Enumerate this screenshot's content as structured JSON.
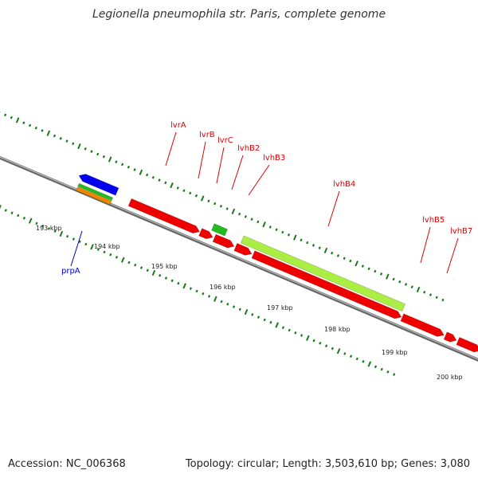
{
  "title": "Legionella pneumophila str. Paris, complete genome",
  "footer": {
    "accession": "Accession: NC_006368",
    "summary": "Topology: circular; Length: 3,503,610 bp; Genes: 3,080"
  },
  "colors": {
    "backbone": "#888888",
    "tick": "#1a7a1a",
    "gene_red": "#ee0000",
    "gene_lime": "#aaee44",
    "gene_green": "#22bb22",
    "gene_blue": "#0000ee",
    "gene_orange": "#ee8800",
    "label_red": "#dd0000",
    "label_blue": "#0000cc"
  },
  "scale_labels": [
    "193 kbp",
    "194 kbp",
    "195 kbp",
    "196 kbp",
    "197 kbp",
    "198 kbp",
    "199 kbp",
    "200 kbp"
  ],
  "gene_labels": [
    {
      "text": "lvrA",
      "color": "label_red"
    },
    {
      "text": "lvrB",
      "color": "label_red"
    },
    {
      "text": "lvrC",
      "color": "label_red"
    },
    {
      "text": "lvhB2",
      "color": "label_red"
    },
    {
      "text": "lvhB3",
      "color": "label_red"
    },
    {
      "text": "lvhB4",
      "color": "label_red"
    },
    {
      "text": "lvhB5",
      "color": "label_red"
    },
    {
      "text": "lvhB7",
      "color": "label_red"
    },
    {
      "text": "prpA",
      "color": "label_blue"
    }
  ]
}
